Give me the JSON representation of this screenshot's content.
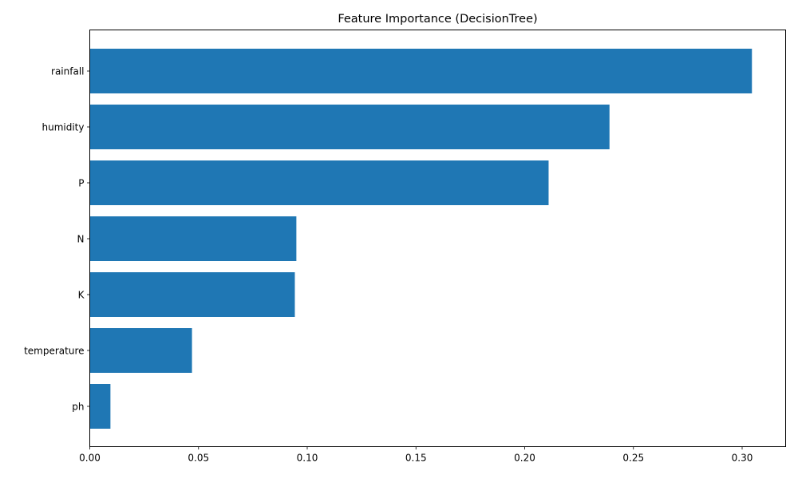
{
  "chart_data": {
    "type": "bar",
    "orientation": "horizontal",
    "title": "Feature Importance (DecisionTree)",
    "xlabel": "",
    "ylabel": "",
    "categories": [
      "rainfall",
      "humidity",
      "P",
      "N",
      "K",
      "temperature",
      "ph"
    ],
    "values": [
      0.3045,
      0.239,
      0.211,
      0.095,
      0.0943,
      0.047,
      0.0095
    ],
    "xlim": [
      0,
      0.32
    ],
    "xticks": [
      0.0,
      0.05,
      0.1,
      0.15,
      0.2,
      0.25,
      0.3
    ],
    "xtick_labels": [
      "0.00",
      "0.05",
      "0.10",
      "0.15",
      "0.20",
      "0.25",
      "0.30"
    ],
    "grid": false,
    "bar_color": "#1f77b4"
  }
}
